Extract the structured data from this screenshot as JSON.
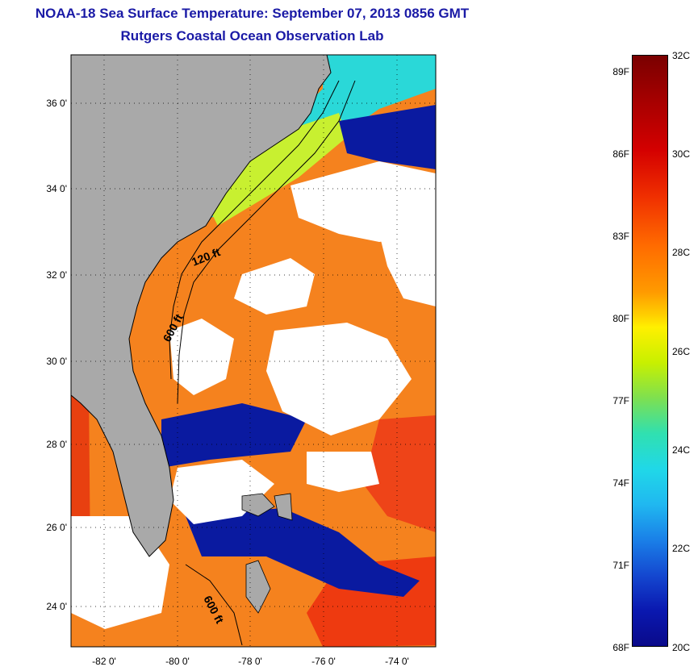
{
  "title": {
    "line1": "NOAA-18 Sea Surface Temperature:  September 07, 2013 0856 GMT",
    "line2": "Rutgers Coastal Ocean Observation Lab"
  },
  "map": {
    "lat_labels": [
      "36 0'",
      "34 0'",
      "32 0'",
      "30 0'",
      "28 0'",
      "26 0'",
      "24 0'"
    ],
    "lon_labels": [
      "-82 0'",
      "-80 0'",
      "-78 0'",
      "-76 0'",
      "-74 0'"
    ],
    "contour_labels": [
      "120 ft",
      "600 ft",
      "600 ft"
    ],
    "colors": {
      "land": "#a9a9a9",
      "cloud": "#ffffff",
      "warm": "#ff7a1a",
      "hot": "#f03a10",
      "cool": "#20d0e8",
      "cold": "#0a1aa0"
    }
  },
  "colorbar": {
    "fahrenheit_labels": [
      "89F",
      "86F",
      "83F",
      "80F",
      "77F",
      "74F",
      "71F",
      "68F"
    ],
    "celsius_labels": [
      "32C",
      "30C",
      "28C",
      "26C",
      "24C",
      "22C",
      "20C"
    ]
  }
}
